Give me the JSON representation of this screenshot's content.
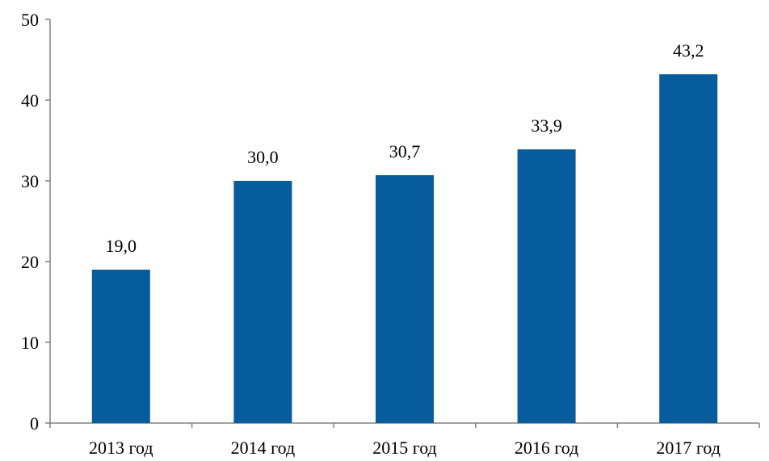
{
  "chart_data": {
    "type": "bar",
    "title": "",
    "xlabel": "",
    "ylabel": "",
    "categories": [
      "2013 год",
      "2014 год",
      "2015 год",
      "2016 год",
      "2017 год"
    ],
    "values": [
      19.0,
      30.0,
      30.7,
      33.9,
      43.2
    ],
    "value_labels": [
      "19,0",
      "30,0",
      "30,7",
      "33,9",
      "43,2"
    ],
    "ylim": [
      0,
      50
    ],
    "yticks": [
      0,
      10,
      20,
      30,
      40,
      50
    ],
    "ytick_labels": [
      "0",
      "10",
      "20",
      "30",
      "40",
      "50"
    ],
    "grid": false,
    "legend": "none",
    "colors": {
      "bar": "#075C9E",
      "axis": "#808080"
    }
  }
}
